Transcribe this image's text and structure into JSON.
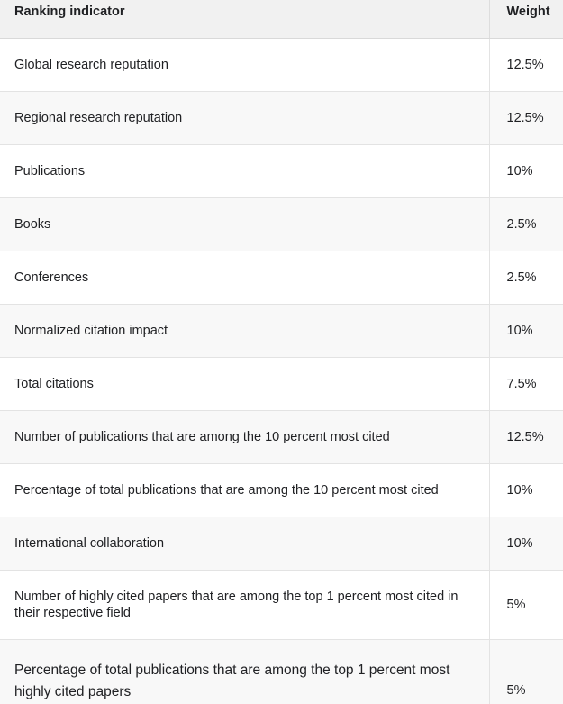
{
  "table": {
    "headers": {
      "indicator": "Ranking indicator",
      "weight": "Weight"
    },
    "rows": [
      {
        "indicator": "Global research reputation",
        "weight": "12.5%"
      },
      {
        "indicator": "Regional research reputation",
        "weight": "12.5%"
      },
      {
        "indicator": "Publications",
        "weight": "10%"
      },
      {
        "indicator": "Books",
        "weight": "2.5%"
      },
      {
        "indicator": "Conferences",
        "weight": "2.5%"
      },
      {
        "indicator": "Normalized citation impact",
        "weight": "10%"
      },
      {
        "indicator": "Total citations",
        "weight": "7.5%"
      },
      {
        "indicator": "Number of publications that are among the 10 percent most cited",
        "weight": "12.5%"
      },
      {
        "indicator": "Percentage of total publications that are among the 10 percent most cited",
        "weight": "10%"
      },
      {
        "indicator": "International collaboration",
        "weight": "10%"
      },
      {
        "indicator": "Number of highly cited papers that are among the top 1 percent most cited in their respective field",
        "weight": "5%"
      },
      {
        "indicator": "Percentage of total publications that are among the top 1 percent most highly cited papers",
        "weight": "5%"
      }
    ]
  },
  "colors": {
    "header_bg": "#f1f1f1",
    "row_alt_bg": "#f8f8f8",
    "border": "#e3e3e3",
    "text": "#202124"
  }
}
